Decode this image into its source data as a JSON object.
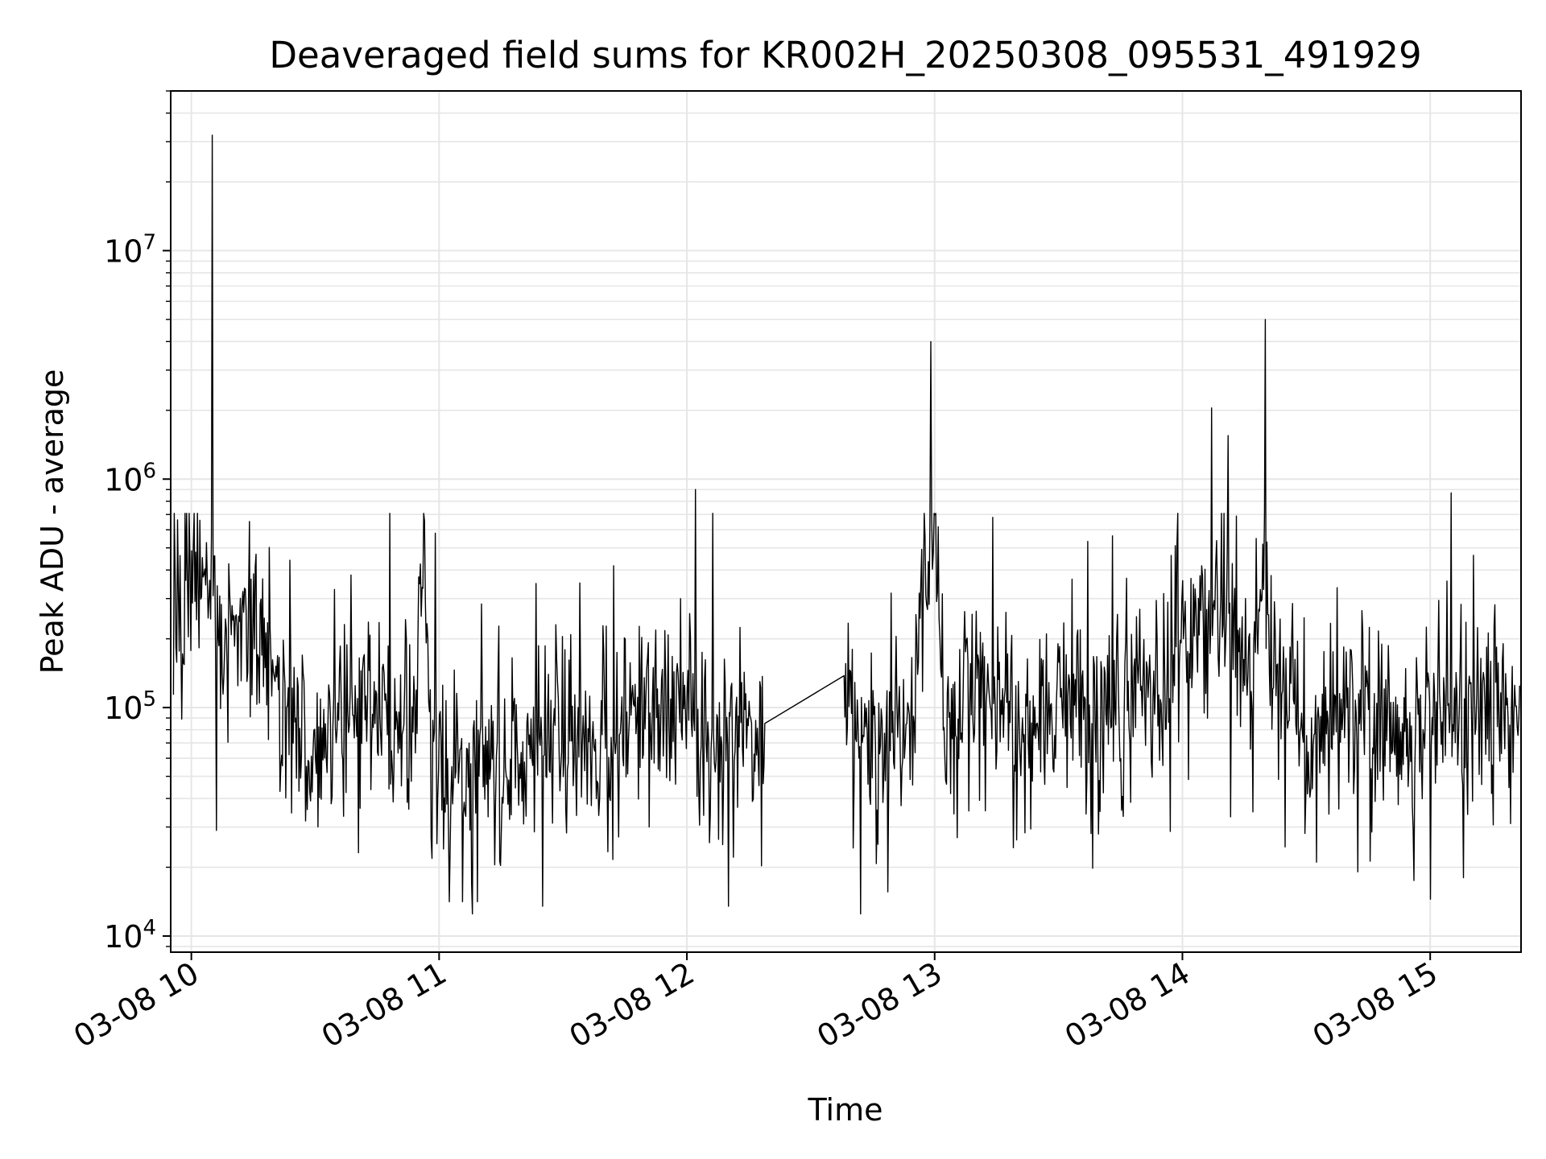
{
  "chart_data": {
    "type": "line",
    "title": "Deaveraged field sums for KR002H_20250308_095531_491929",
    "xlabel": "Time",
    "ylabel": "Peak ADU - average",
    "yscale": "log",
    "ylim": [
      8500,
      50000000
    ],
    "xlim": [
      "2025-03-08 09:55",
      "2025-03-08 15:22"
    ],
    "x_ticks": [
      {
        "x": "2025-03-08 10:00",
        "label": "03-08 10"
      },
      {
        "x": "2025-03-08 11:00",
        "label": "03-08 11"
      },
      {
        "x": "2025-03-08 12:00",
        "label": "03-08 12"
      },
      {
        "x": "2025-03-08 13:00",
        "label": "03-08 13"
      },
      {
        "x": "2025-03-08 14:00",
        "label": "03-08 14"
      },
      {
        "x": "2025-03-08 15:00",
        "label": "03-08 15"
      }
    ],
    "y_ticks": [
      {
        "y": 10000,
        "base": "10",
        "exp": "4"
      },
      {
        "y": 100000,
        "base": "10",
        "exp": "5"
      },
      {
        "y": 1000000,
        "base": "10",
        "exp": "6"
      },
      {
        "y": 10000000,
        "base": "10",
        "exp": "7"
      }
    ],
    "grid": true,
    "line_color": "#000000",
    "grid_color": "#e6e6e6",
    "series": [
      {
        "x": [
          "2025-03-08 09:55",
          "2025-03-08 09:56",
          "2025-03-08 09:57",
          "2025-03-08 09:58",
          "2025-03-08 09:59",
          "2025-03-08 10:00",
          "2025-03-08 10:01",
          "2025-03-08 10:02",
          "2025-03-08 10:03",
          "2025-03-08 10:04",
          "2025-03-08 10:05",
          "2025-03-08 10:06",
          "2025-03-08 10:08",
          "2025-03-08 10:10",
          "2025-03-08 10:12",
          "2025-03-08 10:15",
          "2025-03-08 10:18",
          "2025-03-08 10:20",
          "2025-03-08 10:24",
          "2025-03-08 10:28",
          "2025-03-08 10:30",
          "2025-03-08 10:34",
          "2025-03-08 10:38",
          "2025-03-08 10:42",
          "2025-03-08 10:46",
          "2025-03-08 10:50",
          "2025-03-08 10:54",
          "2025-03-08 10:56",
          "2025-03-08 10:58",
          "2025-03-08 11:02",
          "2025-03-08 11:06",
          "2025-03-08 11:10",
          "2025-03-08 11:15",
          "2025-03-08 11:20",
          "2025-03-08 11:25",
          "2025-03-08 11:30",
          "2025-03-08 11:35",
          "2025-03-08 11:40",
          "2025-03-08 11:45",
          "2025-03-08 11:50",
          "2025-03-08 11:55",
          "2025-03-08 12:00",
          "2025-03-08 12:05",
          "2025-03-08 12:10",
          "2025-03-08 12:15",
          "2025-03-08 12:20",
          "2025-03-08 12:25",
          "2025-03-08 12:30",
          "2025-03-08 12:35",
          "2025-03-08 12:40",
          "2025-03-08 12:45",
          "2025-03-08 12:50",
          "2025-03-08 12:55",
          "2025-03-08 12:59",
          "2025-03-08 13:02",
          "2025-03-08 13:05",
          "2025-03-08 13:10",
          "2025-03-08 13:15",
          "2025-03-08 13:20",
          "2025-03-08 13:25",
          "2025-03-08 13:30",
          "2025-03-08 13:35",
          "2025-03-08 13:40",
          "2025-03-08 13:45",
          "2025-03-08 13:50",
          "2025-03-08 13:55",
          "2025-03-08 14:00",
          "2025-03-08 14:04",
          "2025-03-08 14:08",
          "2025-03-08 14:12",
          "2025-03-08 14:16",
          "2025-03-08 14:20",
          "2025-03-08 14:22",
          "2025-03-08 14:25",
          "2025-03-08 14:30",
          "2025-03-08 14:35",
          "2025-03-08 14:40",
          "2025-03-08 14:45",
          "2025-03-08 14:50",
          "2025-03-08 14:55",
          "2025-03-08 15:00",
          "2025-03-08 15:05",
          "2025-03-08 15:10",
          "2025-03-08 15:15",
          "2025-03-08 15:20"
        ],
        "values": [
          300000,
          200000,
          280000,
          220000,
          400000,
          450000,
          600000,
          900000,
          700000,
          32000000,
          300000,
          250000,
          200000,
          220000,
          180000,
          220000,
          150000,
          120000,
          90000,
          70000,
          60000,
          80000,
          90000,
          100000,
          110000,
          95000,
          80000,
          550000,
          70000,
          45000,
          40000,
          70000,
          50000,
          60000,
          90000,
          80000,
          70000,
          85000,
          75000,
          100000,
          90000,
          110000,
          60000,
          80000,
          90000,
          60000,
          100000,
          110000,
          100000,
          90000,
          80000,
          85000,
          95000,
          4000000,
          100000,
          110000,
          120000,
          100000,
          95000,
          85000,
          100000,
          95000,
          80000,
          100000,
          110000,
          120000,
          200000,
          300000,
          200000,
          250000,
          150000,
          300000,
          140000,
          130000,
          80000,
          90000,
          100000,
          90000,
          85000,
          80000,
          95000,
          100000,
          90000,
          100000,
          95000
        ]
      }
    ],
    "spikes": [
      {
        "x": "2025-03-08 10:05",
        "y": 32000000
      },
      {
        "x": "2025-03-08 10:59",
        "y": 580000
      },
      {
        "x": "2025-03-08 12:02",
        "y": 900000
      },
      {
        "x": "2025-03-08 12:59",
        "y": 4000000
      },
      {
        "x": "2025-03-08 13:14",
        "y": 680000
      },
      {
        "x": "2025-03-08 14:07",
        "y": 2050000
      },
      {
        "x": "2025-03-08 14:11",
        "y": 1550000
      },
      {
        "x": "2025-03-08 14:20",
        "y": 5000000
      },
      {
        "x": "2025-03-08 15:05",
        "y": 870000
      }
    ],
    "dips": [
      {
        "x": "2025-03-08 10:06",
        "y": 29000
      },
      {
        "x": "2025-03-08 11:08",
        "y": 12500
      },
      {
        "x": "2025-03-08 11:25",
        "y": 13500
      },
      {
        "x": "2025-03-08 12:10",
        "y": 13500
      },
      {
        "x": "2025-03-08 12:42",
        "y": 12500
      },
      {
        "x": "2025-03-08 14:56",
        "y": 17500
      },
      {
        "x": "2025-03-08 15:00",
        "y": 14500
      },
      {
        "x": "2025-03-08 15:08",
        "y": 18000
      }
    ]
  }
}
